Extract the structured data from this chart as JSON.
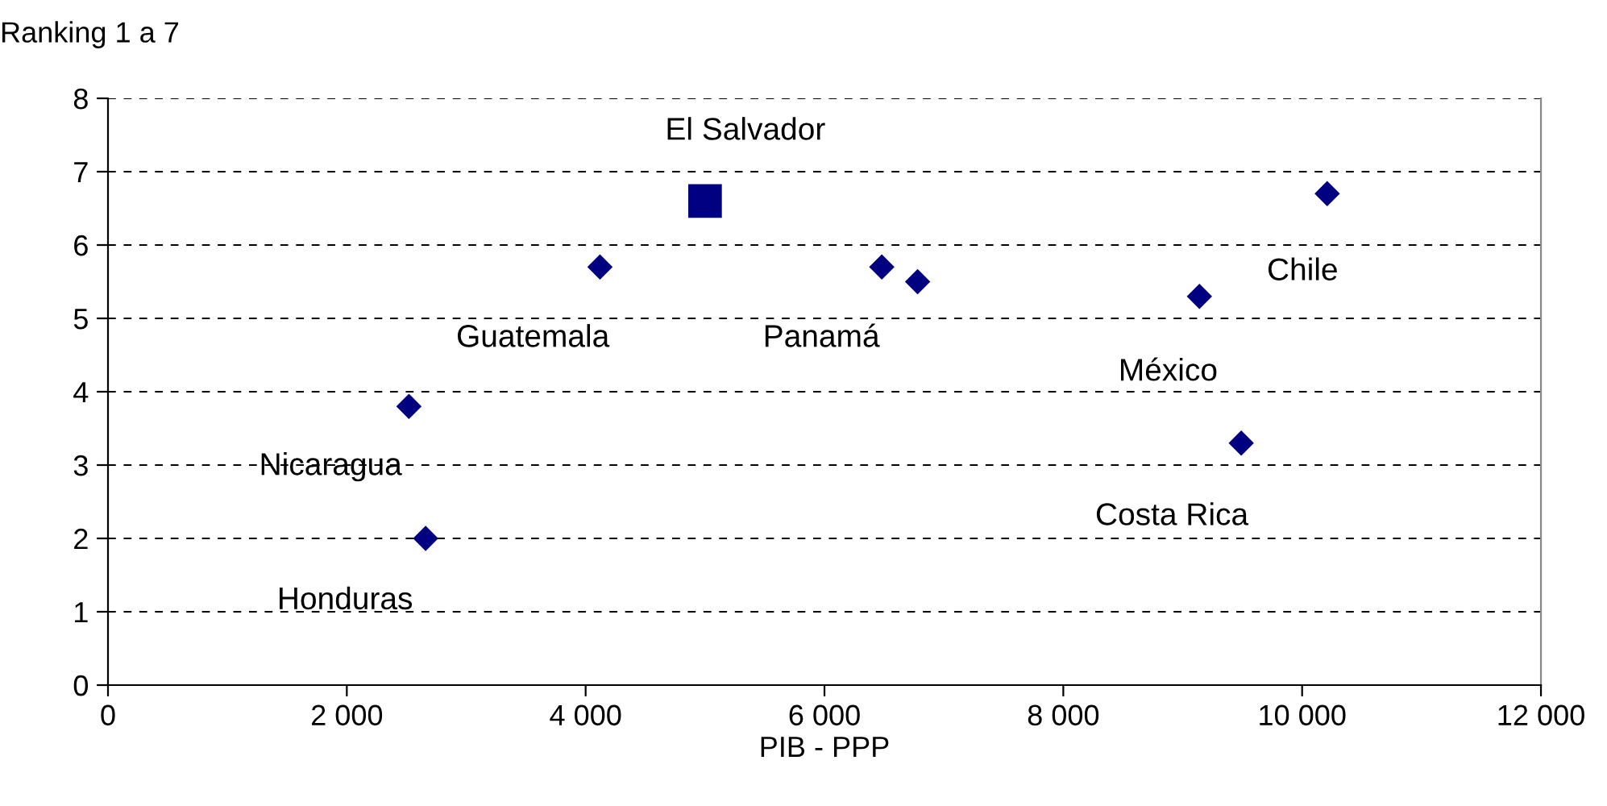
{
  "chart_data": {
    "type": "scatter",
    "xlabel": "PIB - PPP",
    "ylabel": "Ranking 1 a 7",
    "series": [
      {
        "color": "#000080",
        "marker": "diamond",
        "x": [
          2520,
          2660,
          4120,
          6480,
          6780,
          9140,
          9490,
          10210
        ],
        "values": [
          3.8,
          2.0,
          5.7,
          5.7,
          5.5,
          5.3,
          3.3,
          6.7
        ]
      },
      {
        "color": "#000080",
        "marker": "square",
        "x": [
          5000
        ],
        "values": [
          6.6
        ]
      }
    ],
    "annotations": [
      {
        "text": "Nicaragua",
        "x": 2520,
        "y": 3.8
      },
      {
        "text": "Honduras",
        "x": 2660,
        "y": 2.0
      },
      {
        "text": "Guatemala",
        "x": 4120,
        "y": 5.7
      },
      {
        "text": "El Salvador",
        "x": 5000,
        "y": 6.6
      },
      {
        "text": "Panamá",
        "x": 6480,
        "y": 5.7
      },
      {
        "text": "México",
        "x": 9140,
        "y": 5.3
      },
      {
        "text": "Costa Rica",
        "x": 9490,
        "y": 3.3
      },
      {
        "text": "Chile",
        "x": 10210,
        "y": 6.7
      }
    ],
    "xlim": [
      0,
      12000
    ],
    "ylim": [
      0,
      8
    ],
    "xticks": [
      0,
      {
        "value": 2000,
        "label": "2 000"
      },
      {
        "value": 4000,
        "label": "4 000"
      },
      {
        "value": 6000,
        "label": "6 000"
      },
      {
        "value": 8000,
        "label": "8 000"
      },
      {
        "value": 10000,
        "label": "10 000"
      },
      {
        "value": 12000,
        "label": "12 000"
      }
    ],
    "yticks": [
      0,
      1,
      2,
      3,
      4,
      5,
      6,
      7,
      8
    ],
    "grid": "y",
    "line_style": "dashed"
  }
}
